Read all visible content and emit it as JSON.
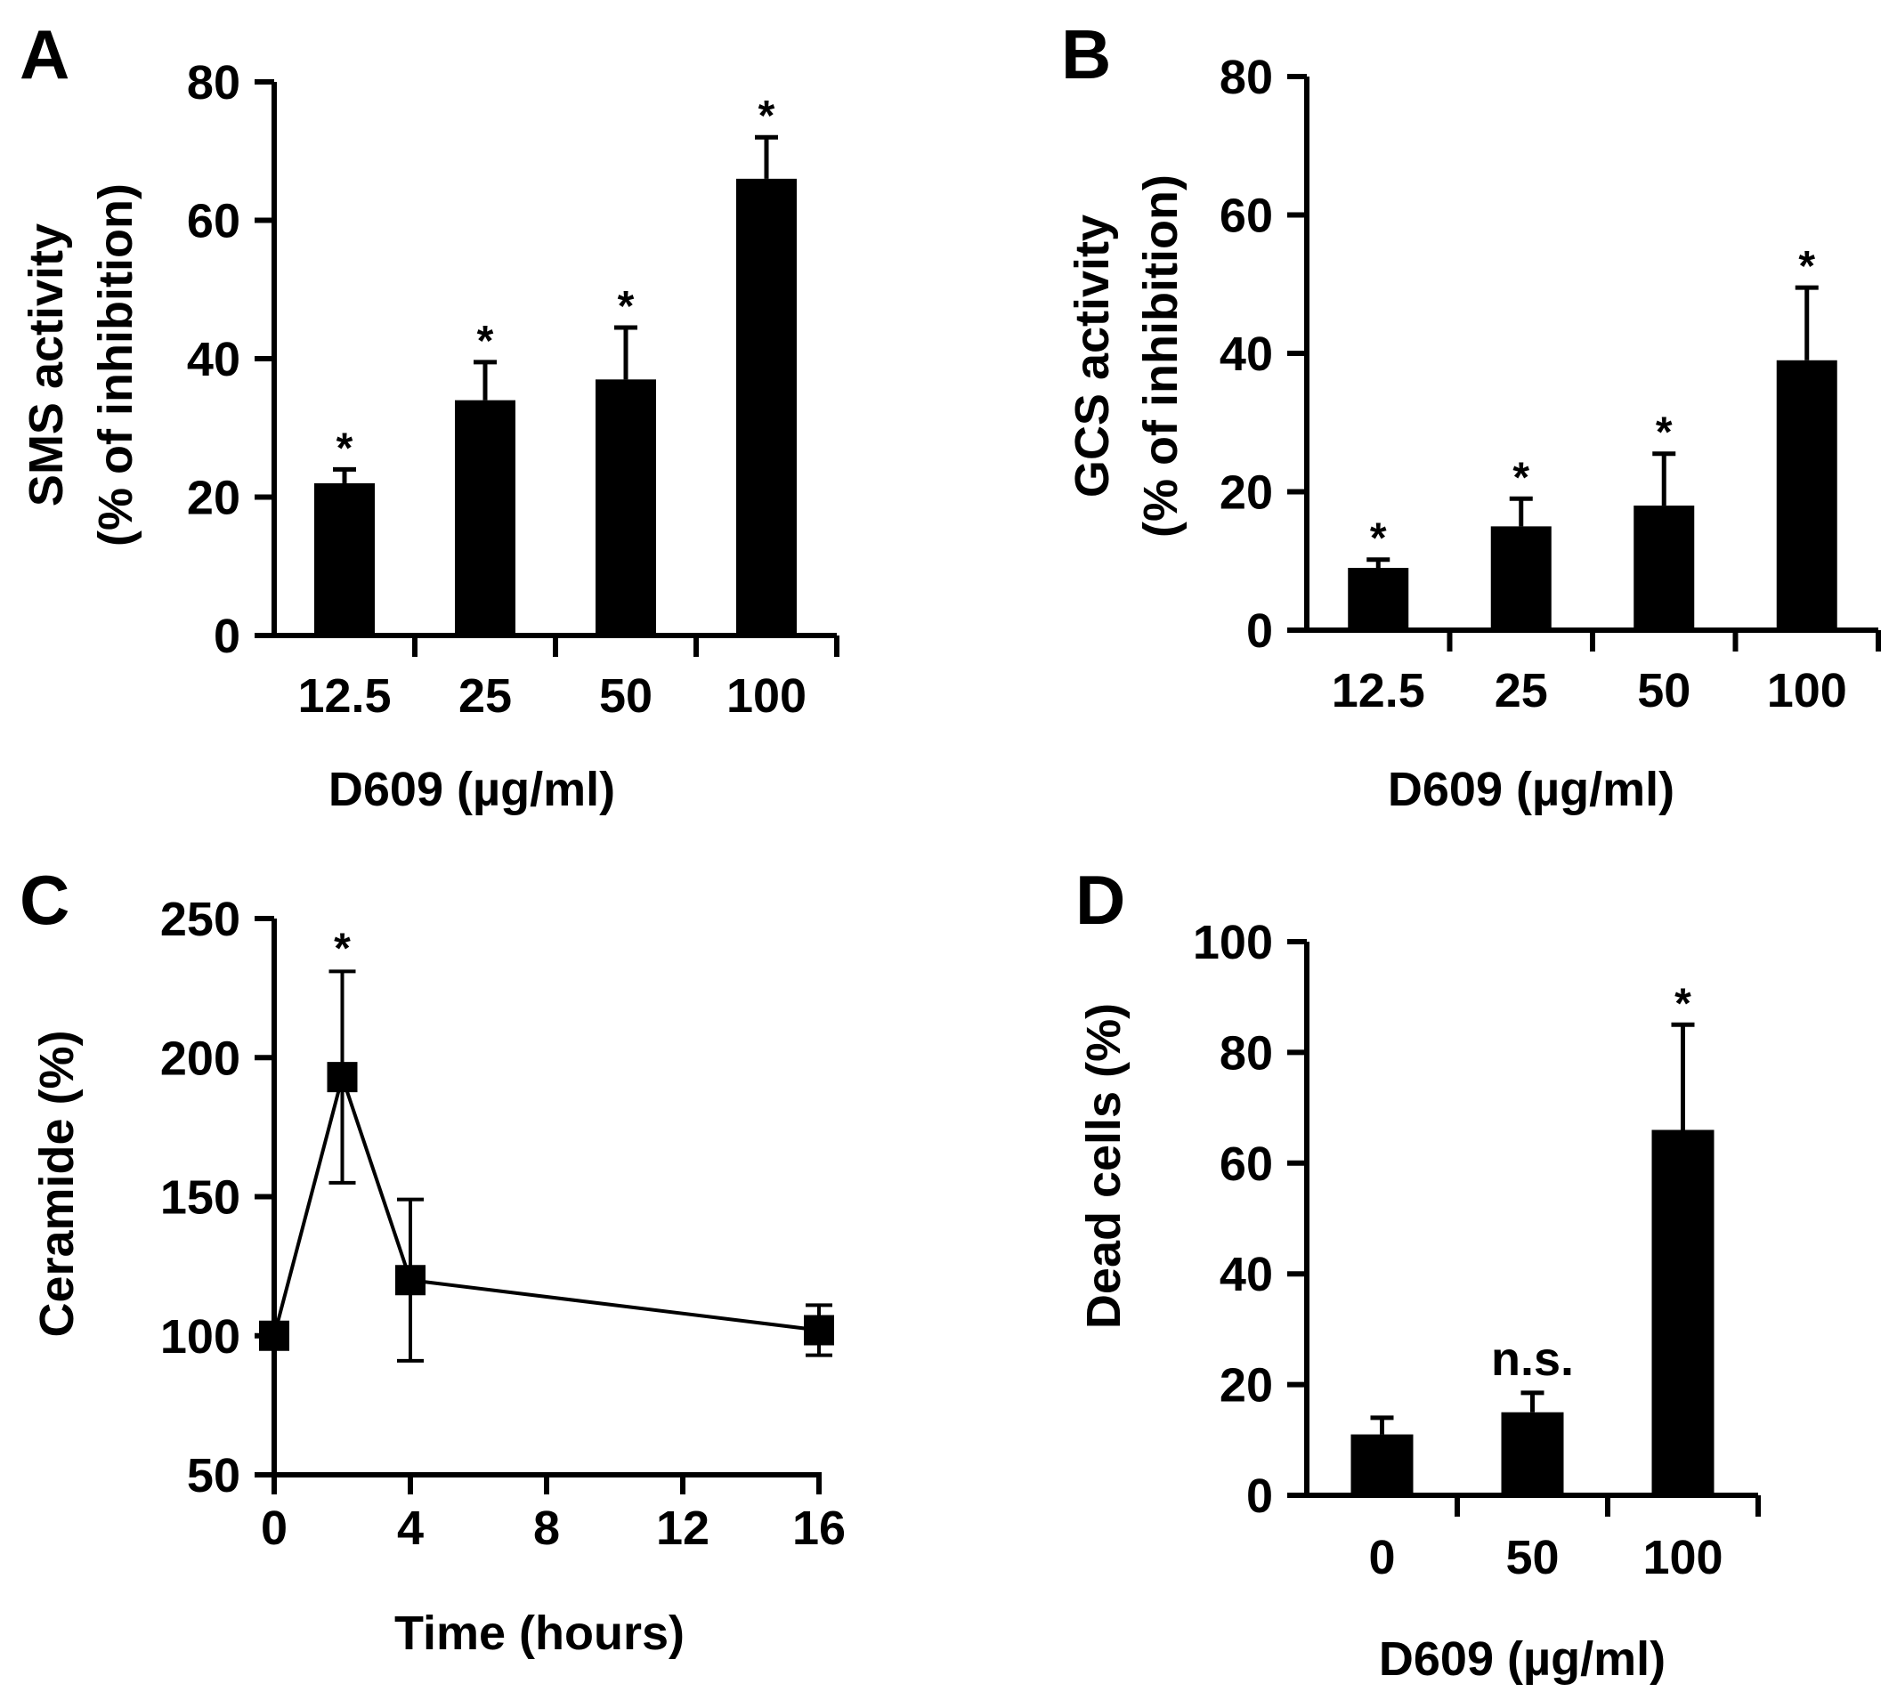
{
  "chart_data": [
    {
      "panel": "A",
      "type": "bar",
      "categories": [
        "12.5",
        "25",
        "50",
        "100"
      ],
      "values": [
        22,
        34,
        37,
        66
      ],
      "errors": [
        2,
        5.5,
        7.5,
        6
      ],
      "annotations": [
        "*",
        "*",
        "*",
        "*"
      ],
      "xlabel": "D609 (µg/ml)",
      "ylabel_line1": "SMS activity",
      "ylabel_line2": "(% of inhibition)",
      "ylim": [
        0,
        80
      ],
      "yticks": [
        0,
        20,
        40,
        60,
        80
      ]
    },
    {
      "panel": "B",
      "type": "bar",
      "categories": [
        "12.5",
        "25",
        "50",
        "100"
      ],
      "values": [
        9,
        15,
        18,
        39
      ],
      "errors": [
        1.2,
        4,
        7.5,
        10.5
      ],
      "annotations": [
        "*",
        "*",
        "*",
        "*"
      ],
      "xlabel": "D609 (µg/ml)",
      "ylabel_line1": "GCS activity",
      "ylabel_line2": "(% of inhibition)",
      "ylim": [
        0,
        80
      ],
      "yticks": [
        0,
        20,
        40,
        60,
        80
      ]
    },
    {
      "panel": "C",
      "type": "line",
      "x": [
        0,
        2,
        4,
        16
      ],
      "y": [
        100,
        193,
        120,
        102
      ],
      "errors": [
        0,
        38,
        29,
        9
      ],
      "annotations": [
        "",
        "*",
        "",
        ""
      ],
      "xlabel": "Time (hours)",
      "ylabel": "Ceramide (%)",
      "xlim": [
        0,
        16
      ],
      "xticks": [
        0,
        4,
        8,
        12,
        16
      ],
      "ylim": [
        50,
        250
      ],
      "yticks": [
        50,
        100,
        150,
        200,
        250
      ]
    },
    {
      "panel": "D",
      "type": "bar",
      "categories": [
        "0",
        "50",
        "100"
      ],
      "values": [
        11,
        15,
        66
      ],
      "errors": [
        3,
        3.5,
        19
      ],
      "annotations": [
        "",
        "n.s.",
        "*"
      ],
      "xlabel": "D609 (µg/ml)",
      "ylabel": "Dead cells (%)",
      "ylim": [
        0,
        100
      ],
      "yticks": [
        0,
        20,
        40,
        60,
        80,
        100
      ]
    }
  ]
}
